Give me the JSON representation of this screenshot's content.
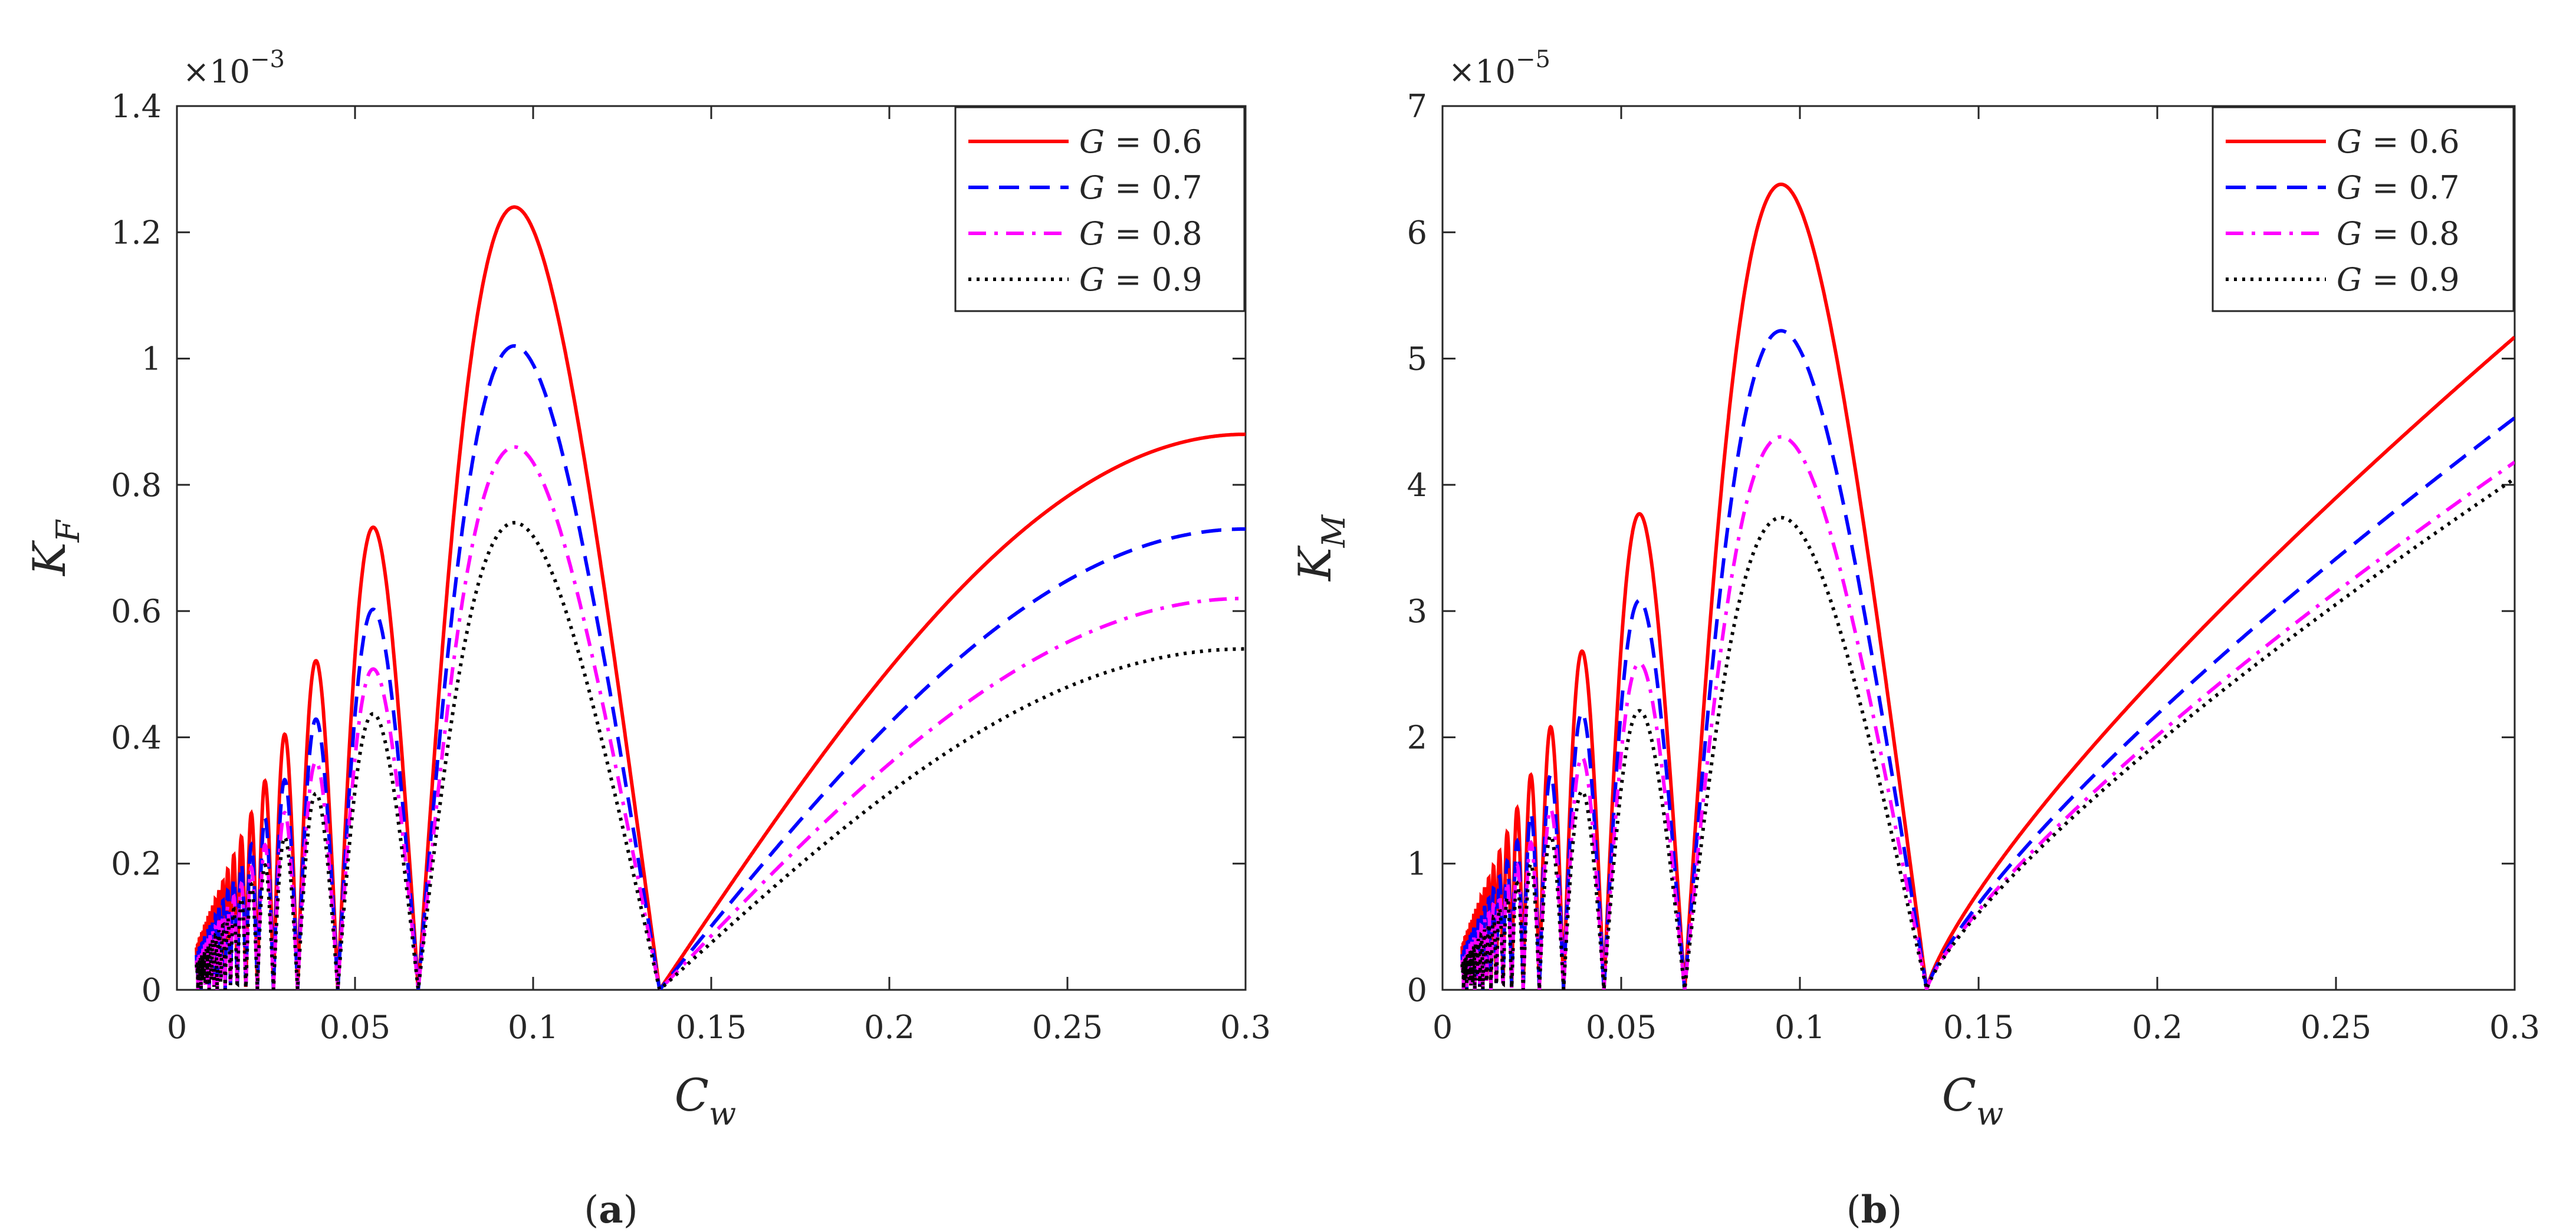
{
  "chart_data": [
    {
      "type": "line",
      "panel_label": "a",
      "xlabel": "C",
      "xlabel_sub": "w",
      "ylabel": "K",
      "ylabel_sub": "F",
      "y_exponent_label": "×10",
      "y_exponent_power": "−3",
      "xlim": [
        0,
        0.3
      ],
      "ylim": [
        0,
        1.4
      ],
      "xticks": [
        0,
        0.05,
        0.1,
        0.15,
        0.2,
        0.25,
        0.3
      ],
      "xtick_labels": [
        "0",
        "0.05",
        "0.1",
        "0.15",
        "0.2",
        "0.25",
        "0.3"
      ],
      "yticks": [
        0,
        0.2,
        0.4,
        0.6,
        0.8,
        1,
        1.2,
        1.4
      ],
      "ytick_labels": [
        "0",
        "0.2",
        "0.4",
        "0.6",
        "0.8",
        "1",
        "1.2",
        "1.4"
      ],
      "grid": false,
      "legend_position": "top-right",
      "curve_model": {
        "form": "abs_sin_over_x",
        "zero_at": 0.1355,
        "tail_saturation": true
      },
      "series": [
        {
          "name": "G = 0.6",
          "legend_var": "G",
          "legend_eq": " = 0.6",
          "color": "#ff0000",
          "dash": "solid",
          "peak": 1.24,
          "end_value": 0.88
        },
        {
          "name": "G = 0.7",
          "legend_var": "G",
          "legend_eq": " = 0.7",
          "color": "#0000ff",
          "dash": "dashed",
          "peak": 1.02,
          "end_value": 0.73
        },
        {
          "name": "G = 0.8",
          "legend_var": "G",
          "legend_eq": " = 0.8",
          "color": "#ff00ff",
          "dash": "dashdot",
          "peak": 0.86,
          "end_value": 0.62
        },
        {
          "name": "G = 0.9",
          "legend_var": "G",
          "legend_eq": " = 0.9",
          "color": "#000000",
          "dash": "dotted",
          "peak": 0.74,
          "end_value": 0.54
        }
      ]
    },
    {
      "type": "line",
      "panel_label": "b",
      "xlabel": "C",
      "xlabel_sub": "w",
      "ylabel": "K",
      "ylabel_sub": "M",
      "y_exponent_label": "×10",
      "y_exponent_power": "−5",
      "xlim": [
        0,
        0.3
      ],
      "ylim": [
        0,
        7
      ],
      "xticks": [
        0,
        0.05,
        0.1,
        0.15,
        0.2,
        0.25,
        0.3
      ],
      "xtick_labels": [
        "0",
        "0.05",
        "0.1",
        "0.15",
        "0.2",
        "0.25",
        "0.3"
      ],
      "yticks": [
        0,
        1,
        2,
        3,
        4,
        5,
        6,
        7
      ],
      "ytick_labels": [
        "0",
        "1",
        "2",
        "3",
        "4",
        "5",
        "6",
        "7"
      ],
      "grid": false,
      "legend_position": "top-right",
      "curve_model": {
        "form": "abs_sin_over_x",
        "zero_at": 0.1355,
        "tail_saturation": false
      },
      "series": [
        {
          "name": "G = 0.6",
          "legend_var": "G",
          "legend_eq": " = 0.6",
          "color": "#ff0000",
          "dash": "solid",
          "peak": 6.38,
          "end_value": 5.17
        },
        {
          "name": "G = 0.7",
          "legend_var": "G",
          "legend_eq": " = 0.7",
          "color": "#0000ff",
          "dash": "dashed",
          "peak": 5.22,
          "end_value": 4.53
        },
        {
          "name": "G = 0.8",
          "legend_var": "G",
          "legend_eq": " = 0.8",
          "color": "#ff00ff",
          "dash": "dashdot",
          "peak": 4.38,
          "end_value": 4.18
        },
        {
          "name": "G = 0.9",
          "legend_var": "G",
          "legend_eq": " = 0.9",
          "color": "#000000",
          "dash": "dotted",
          "peak": 3.74,
          "end_value": 4.05
        }
      ]
    }
  ]
}
